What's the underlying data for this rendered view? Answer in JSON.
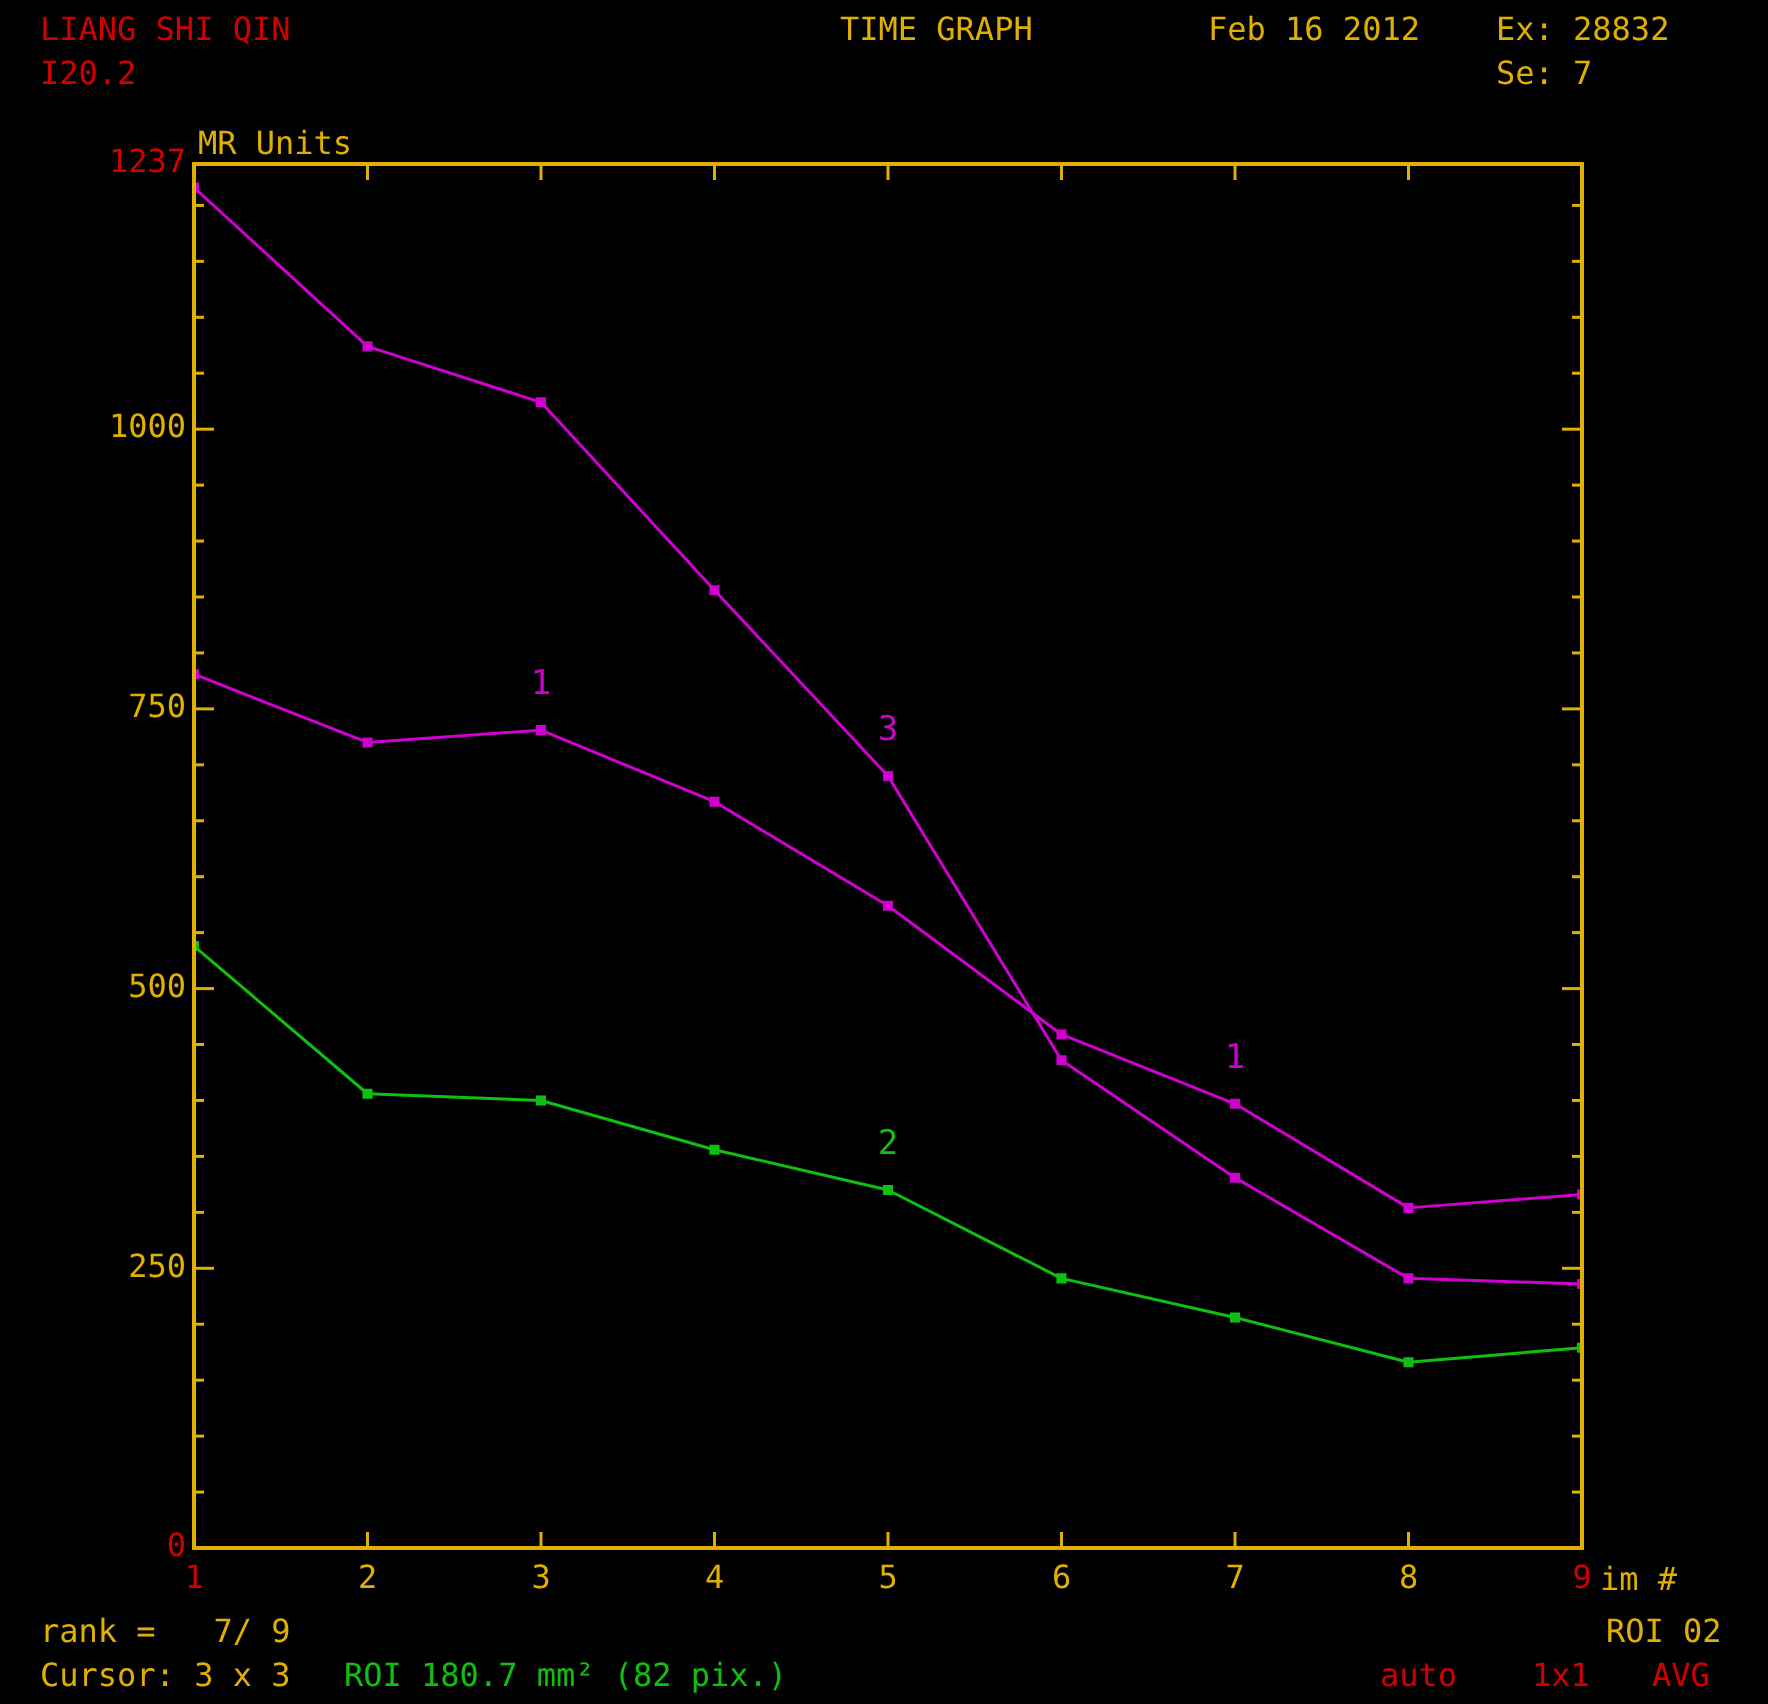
{
  "chart_data": {
    "type": "line",
    "title": "TIME GRAPH",
    "xlabel": "im #",
    "ylabel": "MR Units",
    "x": [
      1,
      2,
      3,
      4,
      5,
      6,
      7,
      8,
      9
    ],
    "xlim": [
      1,
      9
    ],
    "xticks": [
      1,
      2,
      3,
      4,
      5,
      6,
      7,
      8,
      9
    ],
    "ylim": [
      0,
      1237
    ],
    "yticks": [
      0,
      {
        "value": 50,
        "label": null
      },
      {
        "value": 100,
        "label": null
      },
      {
        "value": 150,
        "label": null
      },
      {
        "value": 200,
        "label": null
      },
      250,
      {
        "value": 300,
        "label": null
      },
      {
        "value": 350,
        "label": null
      },
      {
        "value": 400,
        "label": null
      },
      {
        "value": 450,
        "label": null
      },
      500,
      {
        "value": 550,
        "label": null
      },
      {
        "value": 600,
        "label": null
      },
      {
        "value": 650,
        "label": null
      },
      {
        "value": 700,
        "label": null
      },
      750,
      {
        "value": 800,
        "label": null
      },
      {
        "value": 850,
        "label": null
      },
      {
        "value": 900,
        "label": null
      },
      {
        "value": 950,
        "label": null
      },
      1000,
      {
        "value": 1050,
        "label": null
      },
      {
        "value": 1100,
        "label": null
      },
      {
        "value": 1150,
        "label": null
      },
      {
        "value": 1200,
        "label": null
      },
      1237
    ],
    "marker": "square",
    "line_style": "solid",
    "series": [
      {
        "color": "#d000d0",
        "values": [
          1216,
          1074,
          1024,
          856,
          690,
          436,
          331,
          241,
          236
        ]
      },
      {
        "color": "#d000d0",
        "values": [
          781,
          720,
          731,
          667,
          574,
          459,
          397,
          304,
          316
        ]
      },
      {
        "color": "#10c010",
        "values": [
          538,
          406,
          400,
          356,
          320,
          241,
          206,
          166,
          179
        ]
      }
    ],
    "annotations": [
      "LIANG SHI QIN",
      "I20.2",
      "Feb 16 2012",
      "Ex: 28832",
      "Se: 7",
      "rank =   7/ 9",
      "Cursor: 3 x 3",
      "ROI 180.7 mm² (82 pix.)",
      "ROI 02",
      "auto",
      "1x1",
      "AVG",
      {
        "text": "1",
        "x": 3,
        "y": 731
      },
      {
        "text": "3",
        "x": 5,
        "y": 690
      },
      {
        "text": "1",
        "x": 7,
        "y": 397
      },
      {
        "text": "2",
        "x": 5,
        "y": 320
      }
    ]
  }
}
